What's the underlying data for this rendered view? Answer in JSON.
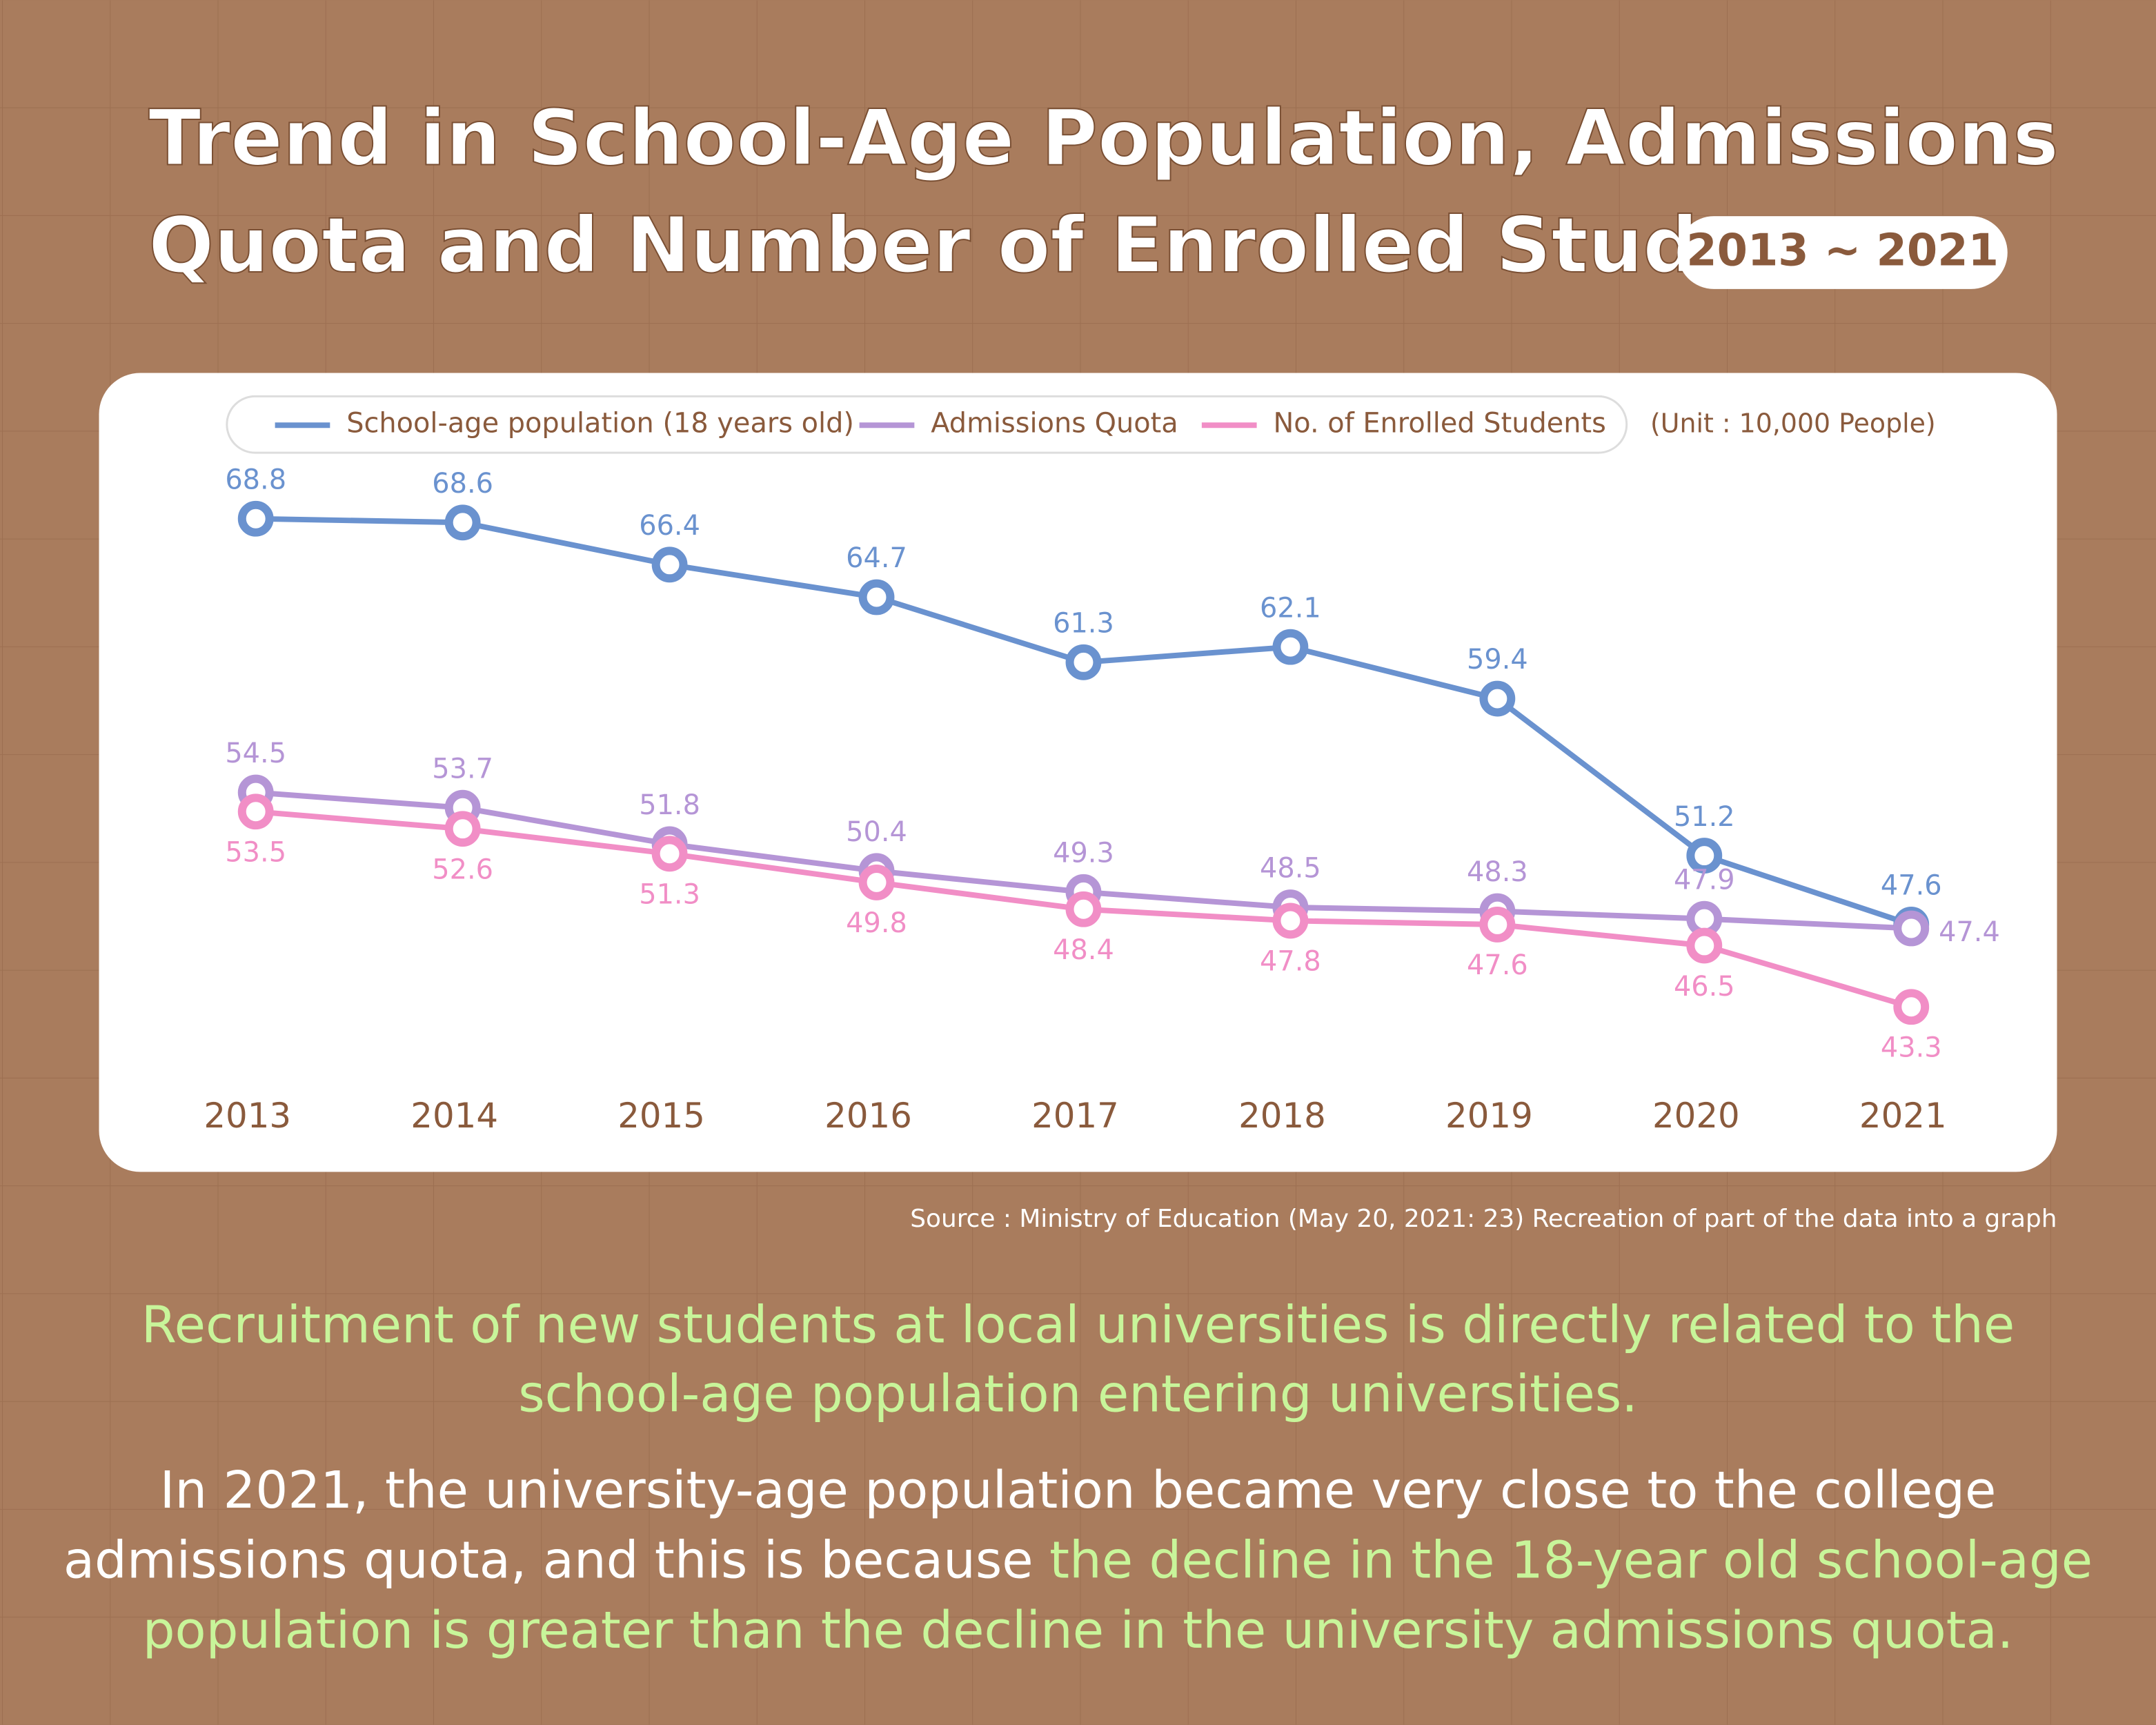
{
  "title_lines": [
    "Trend in School-Age Population, Admissions",
    "Quota and Number of Enrolled Students"
  ],
  "badge": "2013 ~ 2021",
  "chart_data": {
    "type": "line",
    "unit": "(Unit : 10,000 People)",
    "categories": [
      "2013",
      "2014",
      "2015",
      "2016",
      "2017",
      "2018",
      "2019",
      "2020",
      "2021"
    ],
    "series": [
      {
        "name": "School-age population (18 years old)",
        "color": "#6a92cf",
        "values": [
          68.8,
          68.6,
          66.4,
          64.7,
          61.3,
          62.1,
          59.4,
          51.2,
          47.6
        ]
      },
      {
        "name": "Admissions Quota",
        "color": "#b595d6",
        "values": [
          54.5,
          53.7,
          51.8,
          50.4,
          49.3,
          48.5,
          48.3,
          47.9,
          47.4
        ]
      },
      {
        "name": "No. of Enrolled Students",
        "color": "#f18ec6",
        "values": [
          53.5,
          52.6,
          51.3,
          49.8,
          48.4,
          47.8,
          47.6,
          46.5,
          43.3
        ]
      }
    ]
  },
  "source": "Source : Ministry of Education (May 20, 2021: 23) Recreation of part of the data into a graph",
  "summary": {
    "headline_lines": [
      "Recruitment of new students at local universities is directly related to the",
      "school-age population entering universities."
    ],
    "body_lines": [
      [
        {
          "text": "In 2021, the university-age population became very close to the college",
          "highlight": false
        }
      ],
      [
        {
          "text": "admissions quota, and this is because ",
          "highlight": false
        },
        {
          "text": "the decline in the 18-year old school-age",
          "highlight": true
        }
      ],
      [
        {
          "text": "population is greater than the decline in the university admissions quota.",
          "highlight": true
        }
      ]
    ]
  }
}
